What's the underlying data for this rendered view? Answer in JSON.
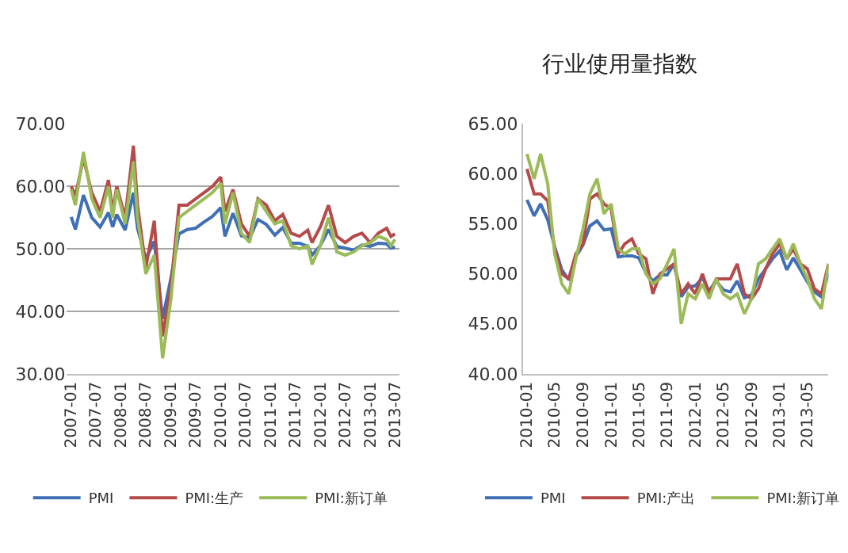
{
  "chart_data": [
    {
      "type": "line",
      "grid": "y",
      "legend": "bottom",
      "x": [
        "2007-01",
        "2007-02",
        "2007-04",
        "2007-06",
        "2007-08",
        "2007-10",
        "2007-11",
        "2007-12",
        "2008-02",
        "2008-04",
        "2008-05",
        "2008-07",
        "2008-09",
        "2008-11",
        "2009-01",
        "2009-03",
        "2009-05",
        "2009-07",
        "2009-09",
        "2009-11",
        "2010-01",
        "2010-02",
        "2010-04",
        "2010-06",
        "2010-08",
        "2010-10",
        "2010-12",
        "2011-02",
        "2011-04",
        "2011-06",
        "2011-08",
        "2011-10",
        "2011-11",
        "2012-01",
        "2012-03",
        "2012-05",
        "2012-07",
        "2012-09",
        "2012-11",
        "2013-01",
        "2013-03",
        "2013-05",
        "2013-06",
        "2013-07"
      ],
      "xlim": [
        "2006-12",
        "2013-08"
      ],
      "xticks": [
        "2007-01",
        "2007-07",
        "2008-01",
        "2008-07",
        "2009-01",
        "2009-07",
        "2010-01",
        "2010-07",
        "2011-01",
        "2011-07",
        "2012-01",
        "2012-07",
        "2013-01",
        "2013-07"
      ],
      "ylim": [
        30,
        70
      ],
      "yticks": [
        {
          "value": 30,
          "label": "30.00"
        },
        {
          "value": 40,
          "label": "40.00"
        },
        {
          "value": 50,
          "label": "50.00"
        },
        {
          "value": 60,
          "label": "60.00"
        },
        {
          "value": 70,
          "label": "70.00"
        }
      ],
      "series": [
        {
          "name": "PMI",
          "color": "#3f6fb5",
          "values": [
            55.1,
            53.1,
            58.6,
            55,
            53.5,
            55.8,
            53.5,
            55.5,
            53,
            59,
            53.3,
            48.4,
            51.2,
            38.8,
            45.3,
            52.4,
            53.1,
            53.3,
            54.3,
            55.2,
            56.6,
            52,
            55.7,
            52.1,
            51.7,
            54.7,
            53.9,
            52.2,
            53.4,
            50.9,
            50.9,
            50.4,
            49,
            50.5,
            53.1,
            50.4,
            50.1,
            49.8,
            50.6,
            50.4,
            50.9,
            50.8,
            50.1,
            50.3
          ]
        },
        {
          "name": "PMI:生产",
          "color": "#b54a4a",
          "values": [
            60,
            58.5,
            64.5,
            59,
            56,
            61,
            56,
            60,
            55,
            66.5,
            57,
            47,
            54.5,
            36,
            44,
            57,
            57,
            58,
            59,
            60,
            61.5,
            56,
            59.5,
            54,
            52,
            58,
            57,
            54.5,
            55.5,
            52.5,
            52,
            53,
            51,
            53.5,
            57,
            52,
            51,
            52,
            52.5,
            51,
            52.5,
            53.3,
            52,
            52.4
          ]
        },
        {
          "name": "PMI:新订单",
          "color": "#9bbb59",
          "values": [
            59.5,
            57,
            65.5,
            58,
            55,
            60,
            55,
            59.5,
            54,
            64,
            55,
            46,
            49,
            32.5,
            42,
            55,
            56,
            57,
            58,
            59,
            60.5,
            54,
            59,
            52.5,
            51,
            58,
            56,
            54,
            54.5,
            50.5,
            50,
            50.5,
            47.5,
            50.5,
            55,
            49.5,
            49,
            49.5,
            50.5,
            51,
            52,
            51.5,
            50.5,
            51.5
          ]
        }
      ]
    },
    {
      "type": "line",
      "title": "行业使用量指数",
      "grid": false,
      "legend": "bottom",
      "x": [
        "2010-01",
        "2010-02",
        "2010-03",
        "2010-04",
        "2010-05",
        "2010-06",
        "2010-07",
        "2010-08",
        "2010-09",
        "2010-10",
        "2010-11",
        "2010-12",
        "2011-01",
        "2011-02",
        "2011-03",
        "2011-04",
        "2011-05",
        "2011-06",
        "2011-07",
        "2011-08",
        "2011-09",
        "2011-10",
        "2011-11",
        "2011-12",
        "2012-01",
        "2012-02",
        "2012-03",
        "2012-04",
        "2012-05",
        "2012-06",
        "2012-07",
        "2012-08",
        "2012-09",
        "2012-10",
        "2012-11",
        "2012-12",
        "2013-01",
        "2013-02",
        "2013-03",
        "2013-04",
        "2013-05",
        "2013-06",
        "2013-07",
        "2013-08"
      ],
      "xlim": [
        "2009-12-15",
        "2013-08"
      ],
      "xticks": [
        "2010-01",
        "2010-05",
        "2010-09",
        "2011-01",
        "2011-05",
        "2011-09",
        "2012-01",
        "2012-05",
        "2012-09",
        "2013-01",
        "2013-05"
      ],
      "ylim": [
        40,
        65
      ],
      "yticks": [
        {
          "value": 40,
          "label": "40.00"
        },
        {
          "value": 45,
          "label": "45.00"
        },
        {
          "value": 50,
          "label": "50.00"
        },
        {
          "value": 55,
          "label": "55.00"
        },
        {
          "value": 60,
          "label": "60.00"
        },
        {
          "value": 65,
          "label": "65.00"
        }
      ],
      "series": [
        {
          "name": "PMI",
          "color": "#3f6fb5",
          "values": [
            57.4,
            55.8,
            57,
            55.4,
            52.7,
            50.4,
            49.4,
            51.7,
            52.9,
            54.8,
            55.3,
            54.4,
            54.5,
            51.7,
            51.8,
            51.8,
            51.6,
            50.1,
            49.3,
            49.9,
            49.9,
            51,
            47.7,
            48.7,
            48.8,
            49.6,
            48.3,
            49.3,
            48.4,
            48.2,
            49.3,
            47.6,
            47.9,
            49.5,
            50.5,
            51.5,
            52.3,
            50.4,
            51.6,
            50.4,
            49.2,
            48.2,
            47.7,
            50.1
          ]
        },
        {
          "name": "PMI:产出",
          "color": "#b54a4a",
          "values": [
            60.5,
            58,
            58,
            57.3,
            52.5,
            50,
            49.5,
            52,
            53,
            57.5,
            58,
            57,
            56.5,
            52,
            53,
            53.5,
            52,
            51.5,
            48,
            50,
            50.5,
            51,
            48,
            49,
            48,
            50,
            48,
            49.5,
            49.5,
            49.5,
            51,
            48,
            47.5,
            48.5,
            50.5,
            52,
            53,
            51.5,
            52.5,
            51,
            50.5,
            48.5,
            48,
            51
          ]
        },
        {
          "name": "PMI:新订单",
          "color": "#9bbb59",
          "values": [
            62,
            59.5,
            62,
            59,
            52,
            49,
            48,
            51.5,
            54.5,
            58,
            59.5,
            56,
            57,
            52.5,
            52,
            52.5,
            52.5,
            50,
            49,
            49.5,
            51,
            52.5,
            45,
            48,
            47.5,
            49,
            47.5,
            49.5,
            48,
            47.5,
            48,
            46,
            47.5,
            51,
            51.5,
            52.5,
            53.5,
            51.5,
            53,
            51,
            49.5,
            47.5,
            46.5,
            51
          ]
        }
      ]
    }
  ]
}
